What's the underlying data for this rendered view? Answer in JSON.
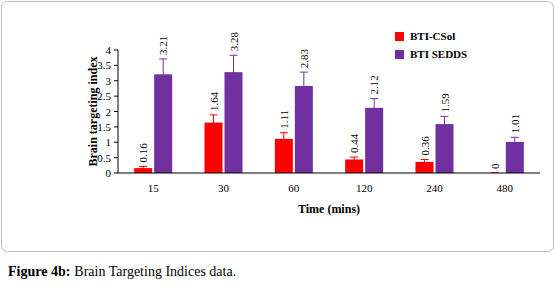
{
  "chart_data": {
    "type": "bar",
    "x_label": "Time (mins)",
    "y_label": "Brain targeting index",
    "caption_label": "Figure 4b:",
    "caption": "Brain Targeting Indices data.",
    "categories": [
      "15",
      "30",
      "60",
      "120",
      "240",
      "480"
    ],
    "series": [
      {
        "name": "BTI-CSol",
        "color": "#ff0000",
        "values": [
          0.16,
          1.64,
          1.11,
          0.44,
          0.36,
          0
        ],
        "errors": [
          0.05,
          0.25,
          0.2,
          0.08,
          0.08,
          0
        ]
      },
      {
        "name": "BTI SEDDS",
        "color": "#7030a0",
        "values": [
          3.21,
          3.28,
          2.83,
          2.12,
          1.59,
          1.01
        ],
        "errors": [
          0.5,
          0.55,
          0.45,
          0.3,
          0.25,
          0.15
        ]
      }
    ],
    "ylim": [
      0,
      4
    ],
    "yticks": [
      0,
      0.5,
      1,
      1.5,
      2,
      2.5,
      3,
      3.5,
      4
    ],
    "grid": false,
    "legend": "top-right",
    "data_labels": true
  }
}
